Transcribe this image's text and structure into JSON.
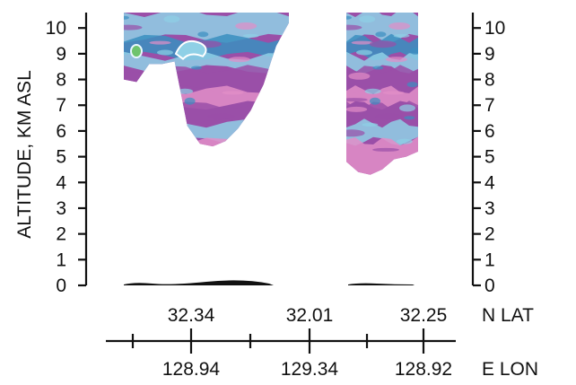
{
  "chart_data": {
    "type": "heatmap",
    "ylabel": "ALTITUDE, KM ASL",
    "y_ticks": [
      "0",
      "1",
      "2",
      "3",
      "4",
      "5",
      "6",
      "7",
      "8",
      "9",
      "10"
    ],
    "y_range_km": [
      0,
      10.6
    ],
    "lat_label": "N LAT",
    "lat_ticks": [
      "32.34",
      "32.01",
      "32.25"
    ],
    "lon_label": "E LON",
    "lon_ticks": [
      "128.94",
      "129.34",
      "128.92"
    ],
    "segments": [
      {
        "name": "left",
        "lat_start": "32.34",
        "lat_end": "32.01",
        "lon_start": "128.94",
        "lon_end": "129.34",
        "echo_bottom_km": [
          8.0,
          7.9,
          8.6,
          8.6,
          8.7,
          6.2,
          5.5,
          5.4,
          5.6,
          6.1,
          6.8,
          7.8,
          9.3,
          10.2
        ],
        "echo_top_km": 10.6
      },
      {
        "name": "right",
        "lat_start": "32.01",
        "lat_end": "32.25",
        "lon_start": "129.34",
        "lon_end": "128.92",
        "echo_bottom_km": [
          4.8,
          4.4,
          4.3,
          4.5,
          4.9,
          5.0,
          5.2
        ],
        "echo_top_km": 10.6
      }
    ],
    "colors": {
      "light_blue": "#8fd0e6",
      "blue": "#3a8fc0",
      "purple": "#9a4fa8",
      "pink": "#e28ec8",
      "green": "#6ec36e",
      "axis": "#111111"
    }
  }
}
